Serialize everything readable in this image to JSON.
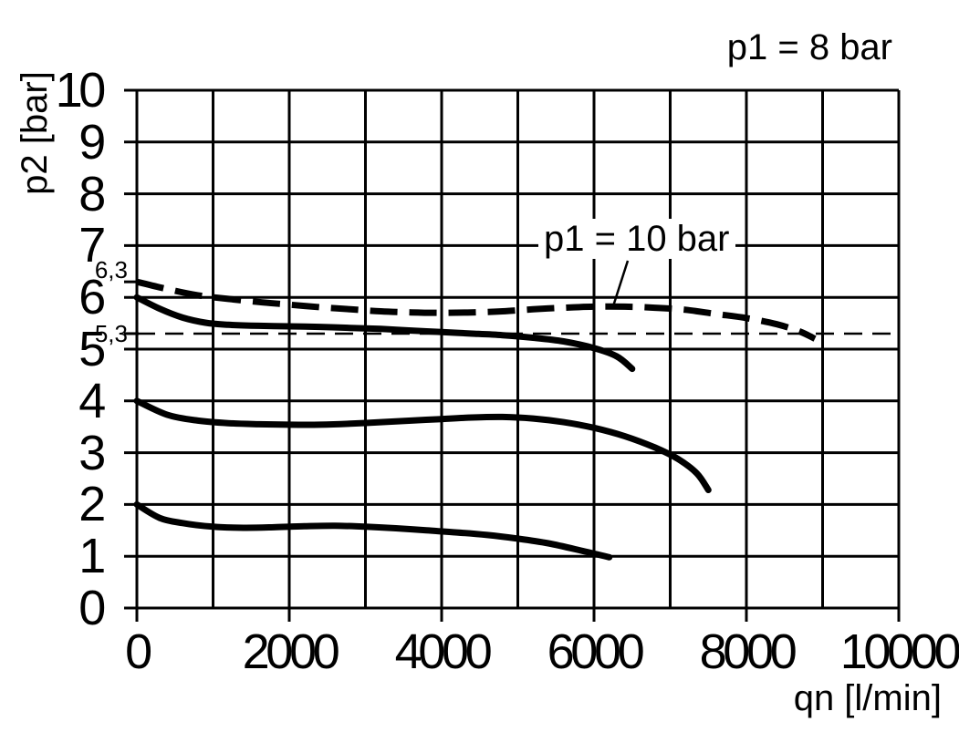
{
  "chart_data": {
    "type": "line",
    "title": "p1 = 8 bar",
    "xlabel": "qn [l/min]",
    "ylabel": "p2 [bar]",
    "xlim": [
      0,
      10000
    ],
    "ylim": [
      0,
      10
    ],
    "x_grid_step": 1000,
    "y_grid_step": 1,
    "grid": true,
    "legend": "none",
    "x_ticks": [
      {
        "v": 0,
        "label": "0"
      },
      {
        "v": 2000,
        "label": "2000"
      },
      {
        "v": 4000,
        "label": "4000"
      },
      {
        "v": 6000,
        "label": "6000"
      },
      {
        "v": 8000,
        "label": "8000"
      },
      {
        "v": 10000,
        "label": "10000"
      }
    ],
    "y_ticks": [
      {
        "v": 0,
        "label": "0"
      },
      {
        "v": 1,
        "label": "1"
      },
      {
        "v": 2,
        "label": "2"
      },
      {
        "v": 3,
        "label": "3"
      },
      {
        "v": 4,
        "label": "4"
      },
      {
        "v": 5,
        "label": "5"
      },
      {
        "v": 6,
        "label": "6"
      },
      {
        "v": 7,
        "label": "7"
      },
      {
        "v": 8,
        "label": "8"
      },
      {
        "v": 9,
        "label": "9"
      },
      {
        "v": 10,
        "label": "10"
      }
    ],
    "y_extra_ticks": [
      {
        "v": 6.3,
        "label": "6,3"
      },
      {
        "v": 5.3,
        "label": "5,3"
      }
    ],
    "reference_line": {
      "y": 5.3,
      "style": "thin-dashed"
    },
    "annotation": {
      "label": "p1 = 10 bar",
      "points_to": "dashed curve"
    },
    "series": [
      {
        "name": "p1 = 10 bar",
        "line_style": "dashed",
        "points": [
          [
            0,
            6.3
          ],
          [
            400,
            6.16
          ],
          [
            800,
            6.04
          ],
          [
            1200,
            5.97
          ],
          [
            1600,
            5.91
          ],
          [
            2000,
            5.86
          ],
          [
            2400,
            5.81
          ],
          [
            2800,
            5.77
          ],
          [
            3200,
            5.73
          ],
          [
            3600,
            5.71
          ],
          [
            4000,
            5.7
          ],
          [
            4400,
            5.71
          ],
          [
            4800,
            5.73
          ],
          [
            5200,
            5.77
          ],
          [
            5600,
            5.8
          ],
          [
            6000,
            5.82
          ],
          [
            6400,
            5.82
          ],
          [
            6800,
            5.8
          ],
          [
            7200,
            5.76
          ],
          [
            7600,
            5.68
          ],
          [
            8000,
            5.6
          ],
          [
            8400,
            5.48
          ],
          [
            8700,
            5.34
          ],
          [
            8900,
            5.2
          ]
        ]
      },
      {
        "name": "p1 = 8 bar, upper curve (starts 6.0 bar)",
        "line_style": "solid",
        "points": [
          [
            0,
            6.0
          ],
          [
            300,
            5.78
          ],
          [
            600,
            5.61
          ],
          [
            900,
            5.51
          ],
          [
            1200,
            5.47
          ],
          [
            1600,
            5.45
          ],
          [
            2000,
            5.44
          ],
          [
            2400,
            5.43
          ],
          [
            2800,
            5.41
          ],
          [
            3200,
            5.39
          ],
          [
            3600,
            5.36
          ],
          [
            4000,
            5.33
          ],
          [
            4400,
            5.3
          ],
          [
            4800,
            5.27
          ],
          [
            5200,
            5.22
          ],
          [
            5600,
            5.15
          ],
          [
            6000,
            5.02
          ],
          [
            6300,
            4.86
          ],
          [
            6500,
            4.62
          ]
        ]
      },
      {
        "name": "p1 = 8 bar, middle curve (starts 4.0 bar)",
        "line_style": "solid",
        "points": [
          [
            0,
            4.0
          ],
          [
            400,
            3.73
          ],
          [
            800,
            3.62
          ],
          [
            1200,
            3.57
          ],
          [
            1600,
            3.55
          ],
          [
            2000,
            3.54
          ],
          [
            2400,
            3.54
          ],
          [
            2800,
            3.56
          ],
          [
            3200,
            3.59
          ],
          [
            3600,
            3.62
          ],
          [
            4000,
            3.65
          ],
          [
            4400,
            3.68
          ],
          [
            4800,
            3.69
          ],
          [
            5200,
            3.66
          ],
          [
            5600,
            3.59
          ],
          [
            6000,
            3.48
          ],
          [
            6400,
            3.32
          ],
          [
            6800,
            3.1
          ],
          [
            7100,
            2.88
          ],
          [
            7350,
            2.6
          ],
          [
            7500,
            2.28
          ]
        ]
      },
      {
        "name": "p1 = 8 bar, lower curve (starts 2.0 bar)",
        "line_style": "solid",
        "points": [
          [
            0,
            2.0
          ],
          [
            300,
            1.74
          ],
          [
            600,
            1.64
          ],
          [
            1000,
            1.57
          ],
          [
            1400,
            1.55
          ],
          [
            1800,
            1.56
          ],
          [
            2200,
            1.58
          ],
          [
            2600,
            1.59
          ],
          [
            3000,
            1.57
          ],
          [
            3400,
            1.54
          ],
          [
            3800,
            1.5
          ],
          [
            4200,
            1.46
          ],
          [
            4600,
            1.41
          ],
          [
            5000,
            1.34
          ],
          [
            5400,
            1.25
          ],
          [
            5800,
            1.12
          ],
          [
            6200,
            0.98
          ]
        ]
      }
    ]
  }
}
